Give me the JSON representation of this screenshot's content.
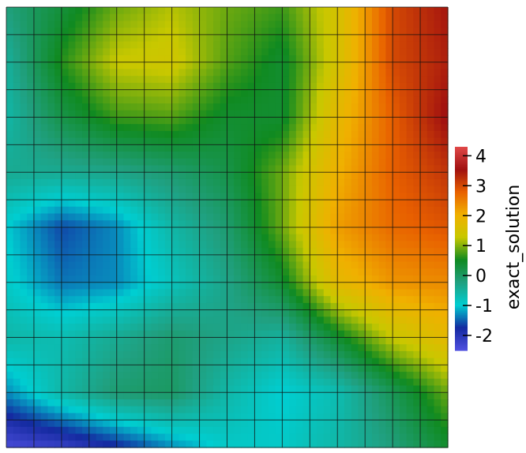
{
  "chart_data": {
    "type": "heatmap",
    "title": "",
    "xlabel": "",
    "ylabel": "",
    "colorbar": {
      "title": "exact_solution",
      "range": [
        -2.5,
        4.3
      ],
      "ticks": [
        4,
        3,
        2,
        1,
        0,
        -1,
        -2
      ],
      "tick_labels": [
        "4",
        "3",
        "2",
        "1",
        "0",
        "-1",
        "-2"
      ],
      "colormap": [
        "#5050e0",
        "#142aa0",
        "#00ced1",
        "#20a080",
        "#108a20",
        "#c8c800",
        "#f0b000",
        "#e86000",
        "#a01010",
        "#e04848"
      ]
    },
    "mesh": {
      "cols": 16,
      "rows": 16,
      "grid_lines": true
    },
    "field_samples_description": "values on a 9x9 grid, row 0 = top",
    "values": [
      [
        -0.2,
        0.3,
        0.9,
        1.2,
        0.9,
        0.7,
        1.5,
        3.0,
        3.5
      ],
      [
        -0.5,
        0.6,
        1.3,
        1.4,
        0.8,
        0.4,
        1.5,
        3.0,
        3.4
      ],
      [
        -0.6,
        0.2,
        0.7,
        0.8,
        0.4,
        0.4,
        1.8,
        2.8,
        3.6
      ],
      [
        -0.4,
        -0.4,
        -0.3,
        -0.1,
        0.2,
        0.9,
        2.0,
        2.8,
        3.2
      ],
      [
        -1.0,
        -1.6,
        -1.3,
        -0.6,
        -0.1,
        0.9,
        2.2,
        2.7,
        2.9
      ],
      [
        -0.9,
        -1.4,
        -1.3,
        -0.8,
        -0.3,
        0.4,
        1.8,
        2.3,
        2.4
      ],
      [
        -0.6,
        -0.7,
        -0.4,
        -0.1,
        -0.3,
        -0.5,
        0.4,
        1.3,
        1.8
      ],
      [
        -1.3,
        -0.6,
        -0.1,
        0.0,
        -0.6,
        -1.0,
        -0.7,
        0.1,
        0.9
      ],
      [
        -2.4,
        -2.2,
        -1.8,
        -1.3,
        -0.9,
        -0.9,
        -0.6,
        -0.2,
        0.4
      ]
    ]
  }
}
